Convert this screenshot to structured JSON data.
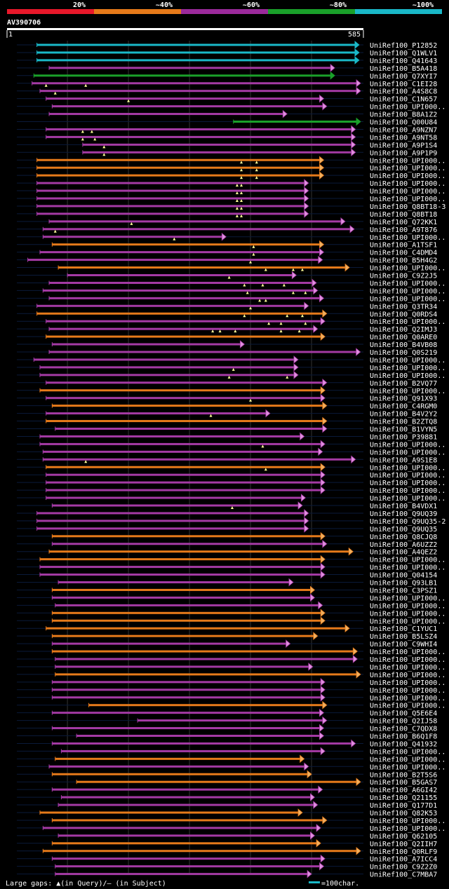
{
  "query": {
    "id": "AV390706",
    "start": "1",
    "end": "585",
    "length": 585
  },
  "legend": {
    "bins": [
      {
        "label": "20%",
        "color": "#e8182a"
      },
      {
        "label": "~40%",
        "color": "#e67a1a"
      },
      {
        "label": "~60%",
        "color": "#9b2a9b"
      },
      {
        "label": "~80%",
        "color": "#1aa02a"
      },
      {
        "label": "~100%",
        "color": "#1ab8c8"
      }
    ]
  },
  "footer": {
    "gaps_text": "Large gaps: ▲(in Query)/— (in Subject)",
    "scale_text": "=100char."
  },
  "colors": {
    "cyan": "#1ab8c8",
    "green": "#1aa02a",
    "purple": "#a43aa4",
    "orange": "#e67a1a",
    "arrow_purple": "#e090e0",
    "arrow_orange": "#f0b060",
    "triangle": "#ffff99"
  },
  "chart_data": {
    "type": "alignment",
    "x_range": [
      1,
      585
    ],
    "hits": [
      {
        "name": "UniRef100_P12852",
        "color": "cyan",
        "start": 50,
        "end": 578,
        "gaps": []
      },
      {
        "name": "UniRef100_Q1WLV1",
        "color": "cyan",
        "start": 50,
        "end": 578,
        "gaps": []
      },
      {
        "name": "UniRef100_Q41643",
        "color": "cyan",
        "start": 50,
        "end": 578,
        "gaps": []
      },
      {
        "name": "UniRef100_B5A418",
        "color": "purple",
        "start": 70,
        "end": 538,
        "gaps": []
      },
      {
        "name": "UniRef100_Q7XYI7",
        "color": "green",
        "start": 45,
        "end": 538,
        "gaps": []
      },
      {
        "name": "UniRef100_C1EI28",
        "color": "purple",
        "start": 42,
        "end": 590,
        "gaps": [
          65,
          130
        ]
      },
      {
        "name": "UniRef100_A4S8C8",
        "color": "purple",
        "start": 55,
        "end": 590,
        "gaps": [
          80
        ]
      },
      {
        "name": "UniRef100_C1N657",
        "color": "purple",
        "start": 65,
        "end": 520,
        "gaps": [
          200
        ]
      },
      {
        "name": "UniRef100_UPI000..",
        "color": "purple",
        "start": 75,
        "end": 525,
        "gaps": []
      },
      {
        "name": "UniRef100_B8A1Z2",
        "color": "purple",
        "start": 70,
        "end": 460,
        "gaps": []
      },
      {
        "name": "UniRef100_Q00U84",
        "color": "green",
        "start": 372,
        "end": 590,
        "gaps": []
      },
      {
        "name": "UniRef100_A9NZN7",
        "color": "purple",
        "start": 65,
        "end": 572,
        "gaps": [
          125,
          140
        ]
      },
      {
        "name": "UniRef100_A9NT58",
        "color": "purple",
        "start": 65,
        "end": 572,
        "gaps": [
          125,
          145
        ]
      },
      {
        "name": "UniRef100_A9P1S4",
        "color": "purple",
        "start": 125,
        "end": 572,
        "gaps": [
          160
        ]
      },
      {
        "name": "UniRef100_A9P1P9",
        "color": "purple",
        "start": 125,
        "end": 572,
        "gaps": [
          160
        ]
      },
      {
        "name": "UniRef100_UPI000..",
        "color": "orange",
        "start": 50,
        "end": 520,
        "gaps": [
          385,
          410
        ]
      },
      {
        "name": "UniRef100_UPI000..",
        "color": "orange",
        "start": 50,
        "end": 520,
        "gaps": [
          385,
          410
        ]
      },
      {
        "name": "UniRef100_UPI000..",
        "color": "orange",
        "start": 50,
        "end": 520,
        "gaps": [
          385,
          410
        ]
      },
      {
        "name": "UniRef100_UPI000..",
        "color": "purple",
        "start": 50,
        "end": 495,
        "gaps": [
          378,
          385
        ]
      },
      {
        "name": "UniRef100_UPI000..",
        "color": "purple",
        "start": 50,
        "end": 495,
        "gaps": [
          378,
          385
        ]
      },
      {
        "name": "UniRef100_UPI000..",
        "color": "purple",
        "start": 50,
        "end": 495,
        "gaps": [
          378,
          385
        ]
      },
      {
        "name": "UniRef100_Q8BT18-3",
        "color": "purple",
        "start": 50,
        "end": 495,
        "gaps": [
          378,
          385
        ]
      },
      {
        "name": "UniRef100_Q8BT18",
        "color": "purple",
        "start": 50,
        "end": 495,
        "gaps": [
          378,
          385
        ]
      },
      {
        "name": "UniRef100_Q72KK1",
        "color": "purple",
        "start": 70,
        "end": 555,
        "gaps": [
          205
        ]
      },
      {
        "name": "UniRef100_A9T876",
        "color": "purple",
        "start": 60,
        "end": 570,
        "gaps": [
          80
        ]
      },
      {
        "name": "UniRef100_UPI000..",
        "color": "purple",
        "start": 60,
        "end": 360,
        "gaps": [
          275
        ]
      },
      {
        "name": "UniRef100_A1TSF1",
        "color": "orange",
        "start": 75,
        "end": 520,
        "gaps": [
          405
        ]
      },
      {
        "name": "UniRef100_C4DMD4",
        "color": "purple",
        "start": 55,
        "end": 520,
        "gaps": [
          405
        ]
      },
      {
        "name": "UniRef100_B5H4G2",
        "color": "purple",
        "start": 35,
        "end": 518,
        "gaps": [
          400
        ]
      },
      {
        "name": "UniRef100_UPI000..",
        "color": "orange",
        "start": 85,
        "end": 562,
        "gaps": [
          425,
          470,
          485
        ]
      },
      {
        "name": "UniRef100_C9Z2J5",
        "color": "purple",
        "start": 100,
        "end": 475,
        "gaps": [
          365
        ]
      },
      {
        "name": "UniRef100_UPI000..",
        "color": "purple",
        "start": 70,
        "end": 508,
        "gaps": [
          390,
          420,
          455
        ]
      },
      {
        "name": "UniRef100_UPI000..",
        "color": "purple",
        "start": 60,
        "end": 510,
        "gaps": [
          395,
          470,
          490
        ]
      },
      {
        "name": "UniRef100_UPI000..",
        "color": "purple",
        "start": 70,
        "end": 520,
        "gaps": [
          415,
          425
        ]
      },
      {
        "name": "UniRef100_Q3TR34",
        "color": "purple",
        "start": 50,
        "end": 495,
        "gaps": [
          400
        ]
      },
      {
        "name": "UniRef100_Q0RDS4",
        "color": "orange",
        "start": 50,
        "end": 525,
        "gaps": [
          390,
          460,
          485
        ]
      },
      {
        "name": "UniRef100_UPI000..",
        "color": "purple",
        "start": 65,
        "end": 522,
        "gaps": [
          430,
          450,
          490
        ]
      },
      {
        "name": "UniRef100_Q2IMJ3",
        "color": "purple",
        "start": 70,
        "end": 510,
        "gaps": [
          338,
          350,
          375,
          450,
          480
        ]
      },
      {
        "name": "UniRef100_Q0ARE0",
        "color": "orange",
        "start": 65,
        "end": 522,
        "gaps": []
      },
      {
        "name": "UniRef100_B4VB08",
        "color": "purple",
        "start": 75,
        "end": 390,
        "gaps": []
      },
      {
        "name": "UniRef100_Q0S219",
        "color": "purple",
        "start": 70,
        "end": 580,
        "gaps": []
      },
      {
        "name": "UniRef100_UPI000..",
        "color": "purple",
        "start": 45,
        "end": 478,
        "gaps": []
      },
      {
        "name": "UniRef100_UPI000..",
        "color": "purple",
        "start": 55,
        "end": 478,
        "gaps": [
          372
        ]
      },
      {
        "name": "UniRef100_UPI000..",
        "color": "purple",
        "start": 55,
        "end": 478,
        "gaps": [
          365,
          460
        ]
      },
      {
        "name": "UniRef100_B2VQ77",
        "color": "purple",
        "start": 65,
        "end": 525,
        "gaps": []
      },
      {
        "name": "UniRef100_UPI000..",
        "color": "orange",
        "start": 55,
        "end": 522,
        "gaps": []
      },
      {
        "name": "UniRef100_Q91X93",
        "color": "purple",
        "start": 65,
        "end": 522,
        "gaps": [
          400
        ]
      },
      {
        "name": "UniRef100_C4RGM0",
        "color": "orange",
        "start": 75,
        "end": 525,
        "gaps": []
      },
      {
        "name": "UniRef100_B4V2Y2",
        "color": "purple",
        "start": 65,
        "end": 432,
        "gaps": [
          335
        ]
      },
      {
        "name": "UniRef100_B2ZTQ8",
        "color": "orange",
        "start": 65,
        "end": 525,
        "gaps": []
      },
      {
        "name": "UniRef100_B1VYN5",
        "color": "purple",
        "start": 80,
        "end": 525,
        "gaps": []
      },
      {
        "name": "UniRef100_P39881",
        "color": "purple",
        "start": 55,
        "end": 488,
        "gaps": []
      },
      {
        "name": "UniRef100_UPI000..",
        "color": "purple",
        "start": 55,
        "end": 522,
        "gaps": [
          420
        ]
      },
      {
        "name": "UniRef100_UPI000..",
        "color": "purple",
        "start": 60,
        "end": 518,
        "gaps": []
      },
      {
        "name": "UniRef100_A9S1E8",
        "color": "purple",
        "start": 60,
        "end": 572,
        "gaps": [
          130
        ]
      },
      {
        "name": "UniRef100_UPI000..",
        "color": "orange",
        "start": 65,
        "end": 522,
        "gaps": [
          425
        ]
      },
      {
        "name": "UniRef100_UPI000..",
        "color": "purple",
        "start": 65,
        "end": 522,
        "gaps": []
      },
      {
        "name": "UniRef100_UPI000..",
        "color": "purple",
        "start": 65,
        "end": 522,
        "gaps": []
      },
      {
        "name": "UniRef100_UPI000..",
        "color": "purple",
        "start": 65,
        "end": 522,
        "gaps": []
      },
      {
        "name": "UniRef100_UPI000..",
        "color": "purple",
        "start": 65,
        "end": 490,
        "gaps": []
      },
      {
        "name": "UniRef100_B4VDX1",
        "color": "purple",
        "start": 75,
        "end": 485,
        "gaps": [
          370
        ]
      },
      {
        "name": "UniRef100_Q9UQ39",
        "color": "purple",
        "start": 50,
        "end": 495,
        "gaps": []
      },
      {
        "name": "UniRef100_Q9UQ35-2",
        "color": "purple",
        "start": 50,
        "end": 495,
        "gaps": []
      },
      {
        "name": "UniRef100_Q9UQ35",
        "color": "purple",
        "start": 50,
        "end": 495,
        "gaps": []
      },
      {
        "name": "UniRef100_Q8CJQ8",
        "color": "orange",
        "start": 75,
        "end": 522,
        "gaps": []
      },
      {
        "name": "UniRef100_A6UZZ2",
        "color": "purple",
        "start": 75,
        "end": 525,
        "gaps": []
      },
      {
        "name": "UniRef100_A4QEZ2",
        "color": "orange",
        "start": 70,
        "end": 568,
        "gaps": []
      },
      {
        "name": "UniRef100_UPI000..",
        "color": "orange",
        "start": 55,
        "end": 522,
        "gaps": []
      },
      {
        "name": "UniRef100_UPI000..",
        "color": "purple",
        "start": 55,
        "end": 522,
        "gaps": []
      },
      {
        "name": "UniRef100_Q04154",
        "color": "purple",
        "start": 55,
        "end": 522,
        "gaps": []
      },
      {
        "name": "UniRef100_Q93LB1",
        "color": "purple",
        "start": 85,
        "end": 470,
        "gaps": []
      },
      {
        "name": "UniRef100_C3PSZ1",
        "color": "orange",
        "start": 75,
        "end": 505,
        "gaps": []
      },
      {
        "name": "UniRef100_UPI000..",
        "color": "purple",
        "start": 75,
        "end": 505,
        "gaps": []
      },
      {
        "name": "UniRef100_UPI000..",
        "color": "purple",
        "start": 80,
        "end": 518,
        "gaps": []
      },
      {
        "name": "UniRef100_UPI000..",
        "color": "orange",
        "start": 75,
        "end": 522,
        "gaps": []
      },
      {
        "name": "UniRef100_UPI000..",
        "color": "orange",
        "start": 75,
        "end": 522,
        "gaps": []
      },
      {
        "name": "UniRef100_C1YUC1",
        "color": "orange",
        "start": 65,
        "end": 562,
        "gaps": []
      },
      {
        "name": "UniRef100_B5LSZ4",
        "color": "orange",
        "start": 75,
        "end": 510,
        "gaps": []
      },
      {
        "name": "UniRef100_C9WHI4",
        "color": "purple",
        "start": 75,
        "end": 465,
        "gaps": []
      },
      {
        "name": "UniRef100_UPI000..",
        "color": "orange",
        "start": 75,
        "end": 575,
        "gaps": []
      },
      {
        "name": "UniRef100_UPI000..",
        "color": "purple",
        "start": 80,
        "end": 575,
        "gaps": []
      },
      {
        "name": "UniRef100_UPI000..",
        "color": "purple",
        "start": 80,
        "end": 502,
        "gaps": []
      },
      {
        "name": "UniRef100_UPI000..",
        "color": "orange",
        "start": 80,
        "end": 590,
        "gaps": []
      },
      {
        "name": "UniRef100_UPI000..",
        "color": "purple",
        "start": 75,
        "end": 522,
        "gaps": []
      },
      {
        "name": "UniRef100_UPI000..",
        "color": "purple",
        "start": 75,
        "end": 522,
        "gaps": []
      },
      {
        "name": "UniRef100_UPI000..",
        "color": "purple",
        "start": 75,
        "end": 522,
        "gaps": []
      },
      {
        "name": "UniRef100_UPI000..",
        "color": "orange",
        "start": 135,
        "end": 525,
        "gaps": []
      },
      {
        "name": "UniRef100_Q5E6E4",
        "color": "purple",
        "start": 75,
        "end": 520,
        "gaps": []
      },
      {
        "name": "UniRef100_Q2IJ58",
        "color": "purple",
        "start": 215,
        "end": 525,
        "gaps": []
      },
      {
        "name": "UniRef100_C7QDX8",
        "color": "purple",
        "start": 75,
        "end": 520,
        "gaps": []
      },
      {
        "name": "UniRef100_B6Q1F8",
        "color": "purple",
        "start": 115,
        "end": 520,
        "gaps": []
      },
      {
        "name": "UniRef100_Q41932",
        "color": "purple",
        "start": 75,
        "end": 572,
        "gaps": []
      },
      {
        "name": "UniRef100_UPI000..",
        "color": "purple",
        "start": 90,
        "end": 522,
        "gaps": []
      },
      {
        "name": "UniRef100_UPI000..",
        "color": "orange",
        "start": 80,
        "end": 488,
        "gaps": []
      },
      {
        "name": "UniRef100_UPI000..",
        "color": "purple",
        "start": 70,
        "end": 495,
        "gaps": []
      },
      {
        "name": "UniRef100_B2T5S6",
        "color": "orange",
        "start": 75,
        "end": 500,
        "gaps": []
      },
      {
        "name": "UniRef100_B5GAS7",
        "color": "orange",
        "start": 115,
        "end": 588,
        "gaps": []
      },
      {
        "name": "UniRef100_A6GI42",
        "color": "purple",
        "start": 75,
        "end": 518,
        "gaps": []
      },
      {
        "name": "UniRef100_Q21155",
        "color": "purple",
        "start": 90,
        "end": 505,
        "gaps": []
      },
      {
        "name": "UniRef100_Q177D1",
        "color": "purple",
        "start": 85,
        "end": 510,
        "gaps": []
      },
      {
        "name": "UniRef100_Q82K53",
        "color": "orange",
        "start": 55,
        "end": 485,
        "gaps": []
      },
      {
        "name": "UniRef100_UPI000..",
        "color": "orange",
        "start": 75,
        "end": 525,
        "gaps": []
      },
      {
        "name": "UniRef100_UPI000..",
        "color": "purple",
        "start": 60,
        "end": 515,
        "gaps": []
      },
      {
        "name": "UniRef100_Q62105",
        "color": "purple",
        "start": 85,
        "end": 505,
        "gaps": []
      },
      {
        "name": "UniRef100_Q2IIH7",
        "color": "orange",
        "start": 75,
        "end": 515,
        "gaps": []
      },
      {
        "name": "UniRef100_Q0RLF9",
        "color": "orange",
        "start": 60,
        "end": 588,
        "gaps": []
      },
      {
        "name": "UniRef100_A7ICC4",
        "color": "purple",
        "start": 75,
        "end": 522,
        "gaps": []
      },
      {
        "name": "UniRef100_C9Z2Z0",
        "color": "purple",
        "start": 80,
        "end": 520,
        "gaps": []
      },
      {
        "name": "UniRef100_C7MBA7",
        "color": "purple",
        "start": 80,
        "end": 500,
        "gaps": []
      }
    ]
  }
}
